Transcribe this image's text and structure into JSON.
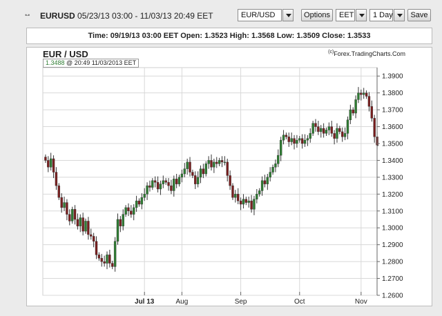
{
  "toolbar": {
    "grip": "•-•",
    "symbol": "EURUSD",
    "range": "05/23/13 03:00 - 11/03/13 20:49 EET",
    "pair_value": "EUR/USD",
    "options_label": "Options",
    "timezone_value": "EET",
    "interval_value": "1 Day",
    "save_label": "Save"
  },
  "info": {
    "time_label": "Time:",
    "time_value": "09/19/13 03:00 EET",
    "open_label": "Open:",
    "open_value": "1.3523",
    "high_label": "High:",
    "high_value": "1.3568",
    "low_label": "Low:",
    "low_value": "1.3509",
    "close_label": "Close:",
    "close_value": "1.3533"
  },
  "chart": {
    "title": "EUR / USD",
    "credit_symbol": "(c)",
    "credit": "Forex.TradingCharts.Com",
    "last_price": "1.3488",
    "last_time": "@ 20:49  11/03/2013 EET"
  },
  "colors": {
    "up": "#2e7d32",
    "down": "#7a1f1f",
    "grid": "#d8d8d8"
  },
  "chart_data": {
    "type": "candlestick",
    "y_ticks": [
      "1.2600",
      "1.2700",
      "1.2800",
      "1.2900",
      "1.3000",
      "1.3100",
      "1.3200",
      "1.3300",
      "1.3400",
      "1.3500",
      "1.3600",
      "1.3700",
      "1.3800",
      "1.3900"
    ],
    "ylim": [
      1.26,
      1.395
    ],
    "x_ticks": [
      {
        "label": "Jul 13",
        "index": 37
      },
      {
        "label": "Aug",
        "index": 51
      },
      {
        "label": "Sep",
        "index": 73
      },
      {
        "label": "Oct",
        "index": 95
      },
      {
        "label": "Nov",
        "index": 118
      }
    ],
    "closes": [
      1.34,
      1.336,
      1.341,
      1.333,
      1.325,
      1.318,
      1.312,
      1.315,
      1.308,
      1.304,
      1.311,
      1.305,
      1.301,
      1.306,
      1.298,
      1.304,
      1.296,
      1.295,
      1.292,
      1.284,
      1.282,
      1.28,
      1.279,
      1.284,
      1.279,
      1.277,
      1.292,
      1.305,
      1.301,
      1.308,
      1.312,
      1.31,
      1.308,
      1.312,
      1.316,
      1.314,
      1.318,
      1.32,
      1.325,
      1.324,
      1.328,
      1.327,
      1.323,
      1.326,
      1.328,
      1.327,
      1.325,
      1.322,
      1.329,
      1.326,
      1.33,
      1.332,
      1.335,
      1.339,
      1.333,
      1.331,
      1.326,
      1.33,
      1.335,
      1.332,
      1.338,
      1.34,
      1.336,
      1.339,
      1.338,
      1.34,
      1.339,
      1.339,
      1.331,
      1.325,
      1.318,
      1.32,
      1.316,
      1.314,
      1.317,
      1.315,
      1.316,
      1.311,
      1.317,
      1.32,
      1.322,
      1.328,
      1.326,
      1.33,
      1.333,
      1.336,
      1.338,
      1.343,
      1.352,
      1.355,
      1.354,
      1.351,
      1.353,
      1.35,
      1.352,
      1.353,
      1.35,
      1.352,
      1.353,
      1.356,
      1.362,
      1.36,
      1.357,
      1.359,
      1.356,
      1.358,
      1.36,
      1.356,
      1.353,
      1.359,
      1.357,
      1.354,
      1.356,
      1.364,
      1.37,
      1.368,
      1.376,
      1.38,
      1.379,
      1.38,
      1.378,
      1.372,
      1.365,
      1.354,
      1.349
    ],
    "last": 1.3488
  }
}
